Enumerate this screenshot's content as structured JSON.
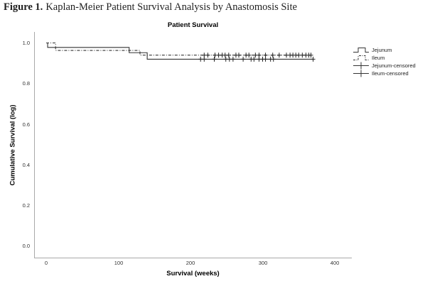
{
  "figure_caption": {
    "label": "Figure 1.",
    "text": "Kaplan-Meier Patient Survival Analysis by Anastomosis Site"
  },
  "chart_data": {
    "type": "line",
    "subtype": "kaplan-meier-step",
    "title": "Patient Survival",
    "xlabel": "Survival (weeks)",
    "ylabel": "Cumulative Survival (log)",
    "xlim": [
      0,
      425
    ],
    "ylim": [
      0.0,
      1.0
    ],
    "x_ticks": [
      "0",
      "100",
      "200",
      "300",
      "400"
    ],
    "y_ticks": [
      "1.0",
      "0.8",
      "0.6",
      "0.4",
      "0.2",
      "0.0"
    ],
    "grid": false,
    "legend_position": "right",
    "series": [
      {
        "name": "Jejunum",
        "style": "solid",
        "steps": [
          [
            0,
            1.0
          ],
          [
            2,
            0.978
          ],
          [
            115,
            0.952
          ],
          [
            140,
            0.92
          ]
        ],
        "end_week": 370
      },
      {
        "name": "Ileum",
        "style": "dash-dot",
        "steps": [
          [
            0,
            1.0
          ],
          [
            13,
            0.963
          ],
          [
            130,
            0.94
          ]
        ],
        "end_week": 367
      }
    ],
    "censored": [
      {
        "name": "Jejunum-censored",
        "level": 0.92,
        "weeks": [
          214,
          219,
          233,
          249,
          254,
          259,
          273,
          284,
          288,
          295,
          300,
          304,
          311,
          315,
          370
        ]
      },
      {
        "name": "Ileum-censored",
        "level": 0.94,
        "weeks": [
          219,
          224,
          234,
          239,
          244,
          248,
          253,
          263,
          267,
          277,
          281,
          290,
          295,
          304,
          314,
          323,
          333,
          338,
          342,
          346,
          350,
          355,
          360,
          364,
          367
        ]
      }
    ],
    "legend": [
      "Jejunum",
      "Ileum",
      "Jejunum-censored",
      "Ileum-censored"
    ]
  }
}
